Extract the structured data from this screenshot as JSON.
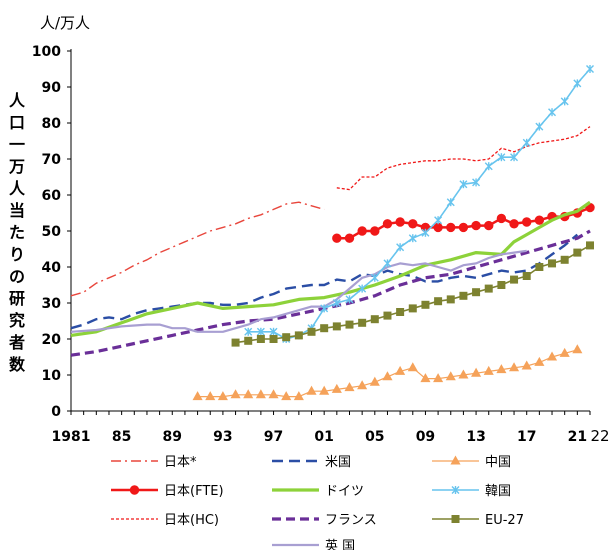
{
  "chart_data": {
    "type": "line",
    "y_unit_label": "人/万人",
    "ylabel": "人口一万人当たりの研究者数",
    "xlabel": "",
    "ylim": [
      0,
      100
    ],
    "xlim": [
      1981,
      2022
    ],
    "y_ticks": [
      "0",
      "10",
      "20",
      "30",
      "40",
      "50",
      "60",
      "70",
      "80",
      "90",
      "100"
    ],
    "x_ticks": [
      {
        "year": 1981,
        "label": "1981"
      },
      {
        "year": 1985,
        "label": "85"
      },
      {
        "year": 1989,
        "label": "89"
      },
      {
        "year": 1993,
        "label": "93"
      },
      {
        "year": 1997,
        "label": "97"
      },
      {
        "year": 2001,
        "label": "01"
      },
      {
        "year": 2005,
        "label": "05"
      },
      {
        "year": 2009,
        "label": "09"
      },
      {
        "year": 2013,
        "label": "13"
      },
      {
        "year": 2017,
        "label": "17"
      },
      {
        "year": 2021,
        "label": "21"
      },
      {
        "year": 2022,
        "label": "22"
      }
    ],
    "grid": false,
    "legend_position": "bottom",
    "series": [
      {
        "key": "japan_star",
        "name": "日本*",
        "color": "#e8463c",
        "dash": "10,4,2,4",
        "width": 1.4,
        "marker": "none",
        "x": [
          1981,
          1982,
          1983,
          1984,
          1985,
          1986,
          1987,
          1988,
          1989,
          1990,
          1991,
          1992,
          1993,
          1994,
          1995,
          1996,
          1997,
          1998,
          1999,
          2000,
          2001
        ],
        "y": [
          32,
          33,
          35.5,
          37,
          38.5,
          40.5,
          42,
          44,
          45.5,
          47,
          48.5,
          50,
          51,
          52,
          53.5,
          54.5,
          56,
          57.5,
          58,
          57,
          56
        ]
      },
      {
        "key": "japan_fte",
        "name": "日本(FTE)",
        "color": "#f01818",
        "dash": "",
        "width": 2.5,
        "marker": "circle",
        "x": [
          2002,
          2003,
          2004,
          2005,
          2006,
          2007,
          2008,
          2009,
          2010,
          2011,
          2012,
          2013,
          2014,
          2015,
          2016,
          2017,
          2018,
          2019,
          2020,
          2021,
          2022
        ],
        "y": [
          48,
          48,
          50,
          50,
          52,
          52.5,
          52,
          51,
          51,
          51,
          51,
          51.5,
          51.5,
          53.5,
          52,
          52.5,
          53,
          54,
          54,
          55,
          56.5
        ]
      },
      {
        "key": "japan_hc",
        "name": "日本(HC)",
        "color": "#f01818",
        "dash": "3,2",
        "width": 1.3,
        "marker": "none",
        "x": [
          2002,
          2003,
          2004,
          2005,
          2006,
          2007,
          2008,
          2009,
          2010,
          2011,
          2012,
          2013,
          2014,
          2015,
          2016,
          2017,
          2018,
          2019,
          2020,
          2021,
          2022
        ],
        "y": [
          62,
          61.5,
          65,
          65,
          67.5,
          68.5,
          69,
          69.5,
          69.5,
          70,
          70,
          69.5,
          70,
          73,
          72,
          73.5,
          74.5,
          75,
          75.5,
          76.5,
          79
        ]
      },
      {
        "key": "us",
        "name": "米国",
        "color": "#2b4ea5",
        "dash": "11,6",
        "width": 2.4,
        "marker": "none",
        "x": [
          1981,
          1982,
          1983,
          1984,
          1985,
          1986,
          1987,
          1988,
          1989,
          1990,
          1991,
          1992,
          1993,
          1994,
          1995,
          1996,
          1997,
          1998,
          1999,
          2000,
          2001,
          2002,
          2003,
          2004,
          2005,
          2006,
          2007,
          2008,
          2009,
          2010,
          2011,
          2012,
          2013,
          2014,
          2015,
          2016,
          2017,
          2018,
          2019,
          2020,
          2021
        ],
        "y": [
          23,
          24,
          25.5,
          26,
          25.5,
          27,
          28,
          28.5,
          29,
          29.5,
          30,
          30,
          29.5,
          29.5,
          30,
          31.5,
          32.5,
          34,
          34.5,
          35,
          35,
          36.5,
          36,
          38,
          37.5,
          39,
          38,
          37.5,
          36,
          36,
          37,
          37.5,
          37,
          38,
          39,
          38.5,
          39,
          41,
          43.5,
          46,
          49
        ]
      },
      {
        "key": "germany",
        "name": "ドイツ",
        "color": "#8dd23a",
        "dash": "",
        "width": 3.2,
        "marker": "none",
        "x": [
          1981,
          1983,
          1985,
          1987,
          1989,
          1991,
          1993,
          1995,
          1997,
          1999,
          2001,
          2003,
          2005,
          2007,
          2009,
          2011,
          2013,
          2015,
          2016,
          2017,
          2018,
          2019,
          2020,
          2021,
          2022
        ],
        "y": [
          21,
          22,
          24.5,
          27,
          28.5,
          30,
          28.5,
          29,
          29.5,
          31,
          31.5,
          33,
          35,
          37.5,
          40.5,
          42,
          44,
          43.5,
          47,
          49,
          51,
          53,
          54.5,
          55.5,
          58
        ]
      },
      {
        "key": "france",
        "name": "フランス",
        "color": "#6a2f98",
        "dash": "9,5",
        "width": 3.2,
        "marker": "none",
        "x": [
          1981,
          1983,
          1985,
          1987,
          1989,
          1991,
          1993,
          1995,
          1997,
          1999,
          2001,
          2003,
          2005,
          2007,
          2009,
          2011,
          2013,
          2015,
          2017,
          2019,
          2021,
          2022
        ],
        "y": [
          15.5,
          16.5,
          18,
          19.5,
          21,
          22.5,
          24,
          25,
          25.5,
          27,
          28.5,
          30,
          32,
          35,
          37,
          38,
          40,
          42,
          44,
          46,
          48,
          50
        ]
      },
      {
        "key": "uk",
        "name": "英 国",
        "color": "#a89fd2",
        "dash": "",
        "width": 2.2,
        "marker": "none",
        "x": [
          1981,
          1983,
          1985,
          1987,
          1988,
          1989,
          1990,
          1991,
          1993,
          1995,
          1996,
          1997,
          1998,
          1999,
          2000,
          2001,
          2002,
          2003,
          2004,
          2005,
          2006,
          2007,
          2008,
          2009,
          2010,
          2011,
          2012,
          2013,
          2014,
          2015,
          2016,
          2017
        ],
        "y": [
          22,
          22.5,
          23.5,
          24,
          24,
          23,
          23,
          22,
          22,
          24,
          25.5,
          26,
          27,
          28,
          29,
          29,
          31,
          34,
          37,
          38,
          40,
          41,
          40.5,
          41,
          40,
          39,
          40.5,
          41,
          42.5,
          43.5,
          44,
          44.5
        ]
      },
      {
        "key": "china",
        "name": "中国",
        "color": "#f5a25a",
        "dash": "",
        "width": 1.2,
        "marker": "triangle",
        "x": [
          1991,
          1992,
          1993,
          1994,
          1995,
          1996,
          1997,
          1998,
          1999,
          2000,
          2001,
          2002,
          2003,
          2004,
          2005,
          2006,
          2007,
          2008,
          2009,
          2010,
          2011,
          2012,
          2013,
          2014,
          2015,
          2016,
          2017,
          2018,
          2019,
          2020,
          2021
        ],
        "y": [
          4,
          4,
          4,
          4.5,
          4.5,
          4.5,
          4.5,
          4,
          4,
          5.5,
          5.5,
          6,
          6.5,
          7,
          8,
          9.5,
          11,
          12,
          9,
          9,
          9.5,
          10,
          10.5,
          11,
          11.5,
          12,
          12.5,
          13.5,
          15,
          16,
          17
        ]
      },
      {
        "key": "korea",
        "name": "韓国",
        "color": "#67c4ee",
        "dash": "",
        "width": 1.6,
        "marker": "star",
        "x": [
          1995,
          1996,
          1997,
          1998,
          1999,
          2000,
          2001,
          2002,
          2003,
          2004,
          2005,
          2006,
          2007,
          2008,
          2009,
          2010,
          2011,
          2012,
          2013,
          2014,
          2015,
          2016,
          2017,
          2018,
          2019,
          2020,
          2021,
          2022
        ],
        "y": [
          22,
          22,
          22,
          20,
          21,
          23,
          28.5,
          30,
          31,
          34,
          37,
          41,
          45.5,
          48,
          49.5,
          53,
          58,
          63,
          63.5,
          68,
          70.5,
          70.5,
          74.5,
          79,
          83,
          86,
          91,
          95
        ]
      },
      {
        "key": "eu27",
        "name": "EU-27",
        "color": "#7d8230",
        "dash": "",
        "width": 1.6,
        "marker": "square",
        "x": [
          1994,
          1995,
          1996,
          1997,
          1998,
          1999,
          2000,
          2001,
          2002,
          2003,
          2004,
          2005,
          2006,
          2007,
          2008,
          2009,
          2010,
          2011,
          2012,
          2013,
          2014,
          2015,
          2016,
          2017,
          2018,
          2019,
          2020,
          2021,
          2022
        ],
        "y": [
          19,
          19.5,
          20,
          20,
          20.5,
          21,
          22,
          23,
          23.5,
          24,
          24.5,
          25.5,
          26.5,
          27.5,
          28.5,
          29.5,
          30.5,
          31,
          32,
          33,
          34,
          35,
          36.5,
          37.5,
          40,
          41,
          42,
          44,
          46
        ]
      }
    ],
    "legend_rows": [
      [
        "japan_star",
        "us",
        "china"
      ],
      [
        "japan_fte",
        "germany",
        "korea"
      ],
      [
        "japan_hc",
        "france",
        "eu27"
      ],
      [
        "",
        "uk",
        ""
      ]
    ]
  }
}
